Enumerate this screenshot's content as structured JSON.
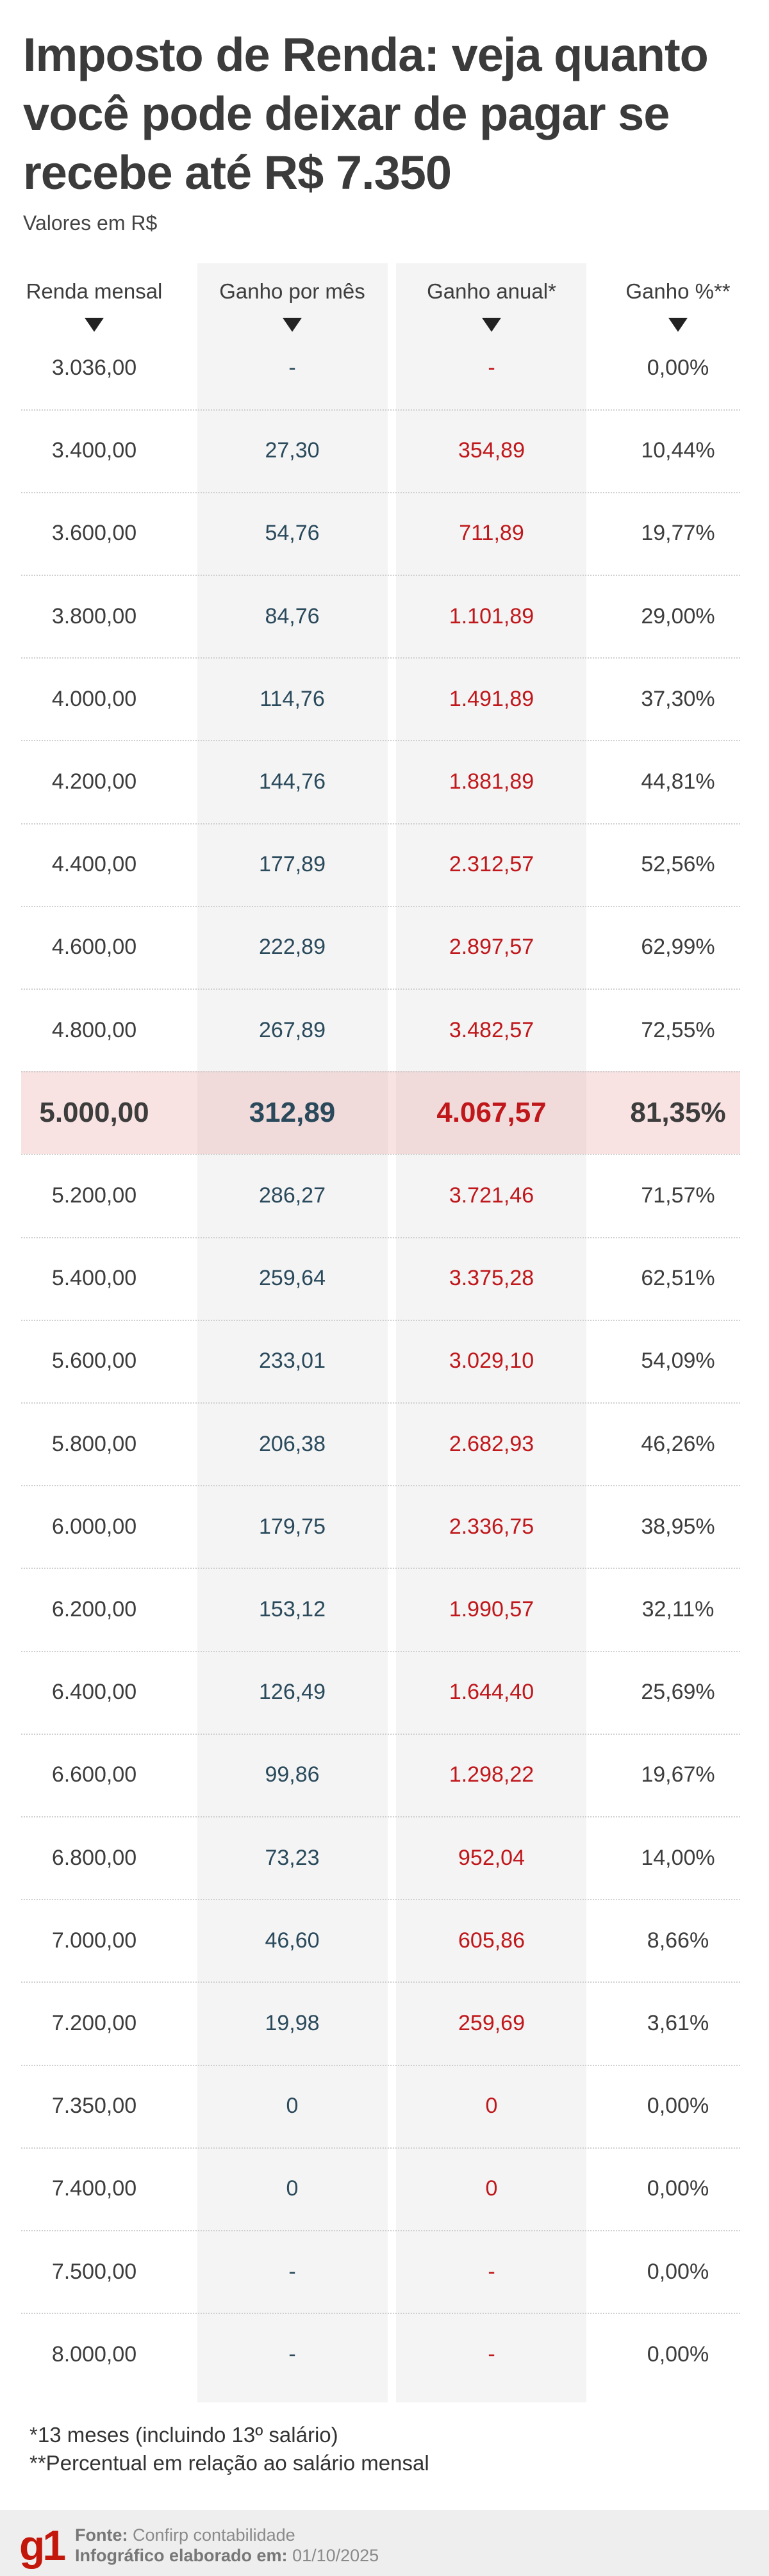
{
  "title": "Imposto de Renda: veja quanto você pode deixar de pagar se recebe até R$ 7.350",
  "subtitle": "Valores em R$",
  "chart_data": {
    "type": "table",
    "columns": [
      "Renda mensal",
      "Ganho por mês",
      "Ganho anual*",
      "Ganho %**"
    ],
    "highlight_row": "5.000,00",
    "colors": {
      "ganho_mes": "#2a4a5c",
      "ganho_anual": "#c0171b",
      "text": "#3d3d3d",
      "highlight": "#f4dede"
    },
    "rows": [
      [
        "3.036,00",
        "-",
        "-",
        "0,00%"
      ],
      [
        "3.400,00",
        "27,30",
        "354,89",
        "10,44%"
      ],
      [
        "3.600,00",
        "54,76",
        "711,89",
        "19,77%"
      ],
      [
        "3.800,00",
        "84,76",
        "1.101,89",
        "29,00%"
      ],
      [
        "4.000,00",
        "114,76",
        "1.491,89",
        "37,30%"
      ],
      [
        "4.200,00",
        "144,76",
        "1.881,89",
        "44,81%"
      ],
      [
        "4.400,00",
        "177,89",
        "2.312,57",
        "52,56%"
      ],
      [
        "4.600,00",
        "222,89",
        "2.897,57",
        "62,99%"
      ],
      [
        "4.800,00",
        "267,89",
        "3.482,57",
        "72,55%"
      ],
      [
        "5.000,00",
        "312,89",
        "4.067,57",
        "81,35%"
      ],
      [
        "5.200,00",
        "286,27",
        "3.721,46",
        "71,57%"
      ],
      [
        "5.400,00",
        "259,64",
        "3.375,28",
        "62,51%"
      ],
      [
        "5.600,00",
        "233,01",
        "3.029,10",
        "54,09%"
      ],
      [
        "5.800,00",
        "206,38",
        "2.682,93",
        "46,26%"
      ],
      [
        "6.000,00",
        "179,75",
        "2.336,75",
        "38,95%"
      ],
      [
        "6.200,00",
        "153,12",
        "1.990,57",
        "32,11%"
      ],
      [
        "6.400,00",
        "126,49",
        "1.644,40",
        "25,69%"
      ],
      [
        "6.600,00",
        "99,86",
        "1.298,22",
        "19,67%"
      ],
      [
        "6.800,00",
        "73,23",
        "952,04",
        "14,00%"
      ],
      [
        "7.000,00",
        "46,60",
        "605,86",
        "8,66%"
      ],
      [
        "7.200,00",
        "19,98",
        "259,69",
        "3,61%"
      ],
      [
        "7.350,00",
        "0",
        "0",
        "0,00%"
      ],
      [
        "7.400,00",
        "0",
        "0",
        "0,00%"
      ],
      [
        "7.500,00",
        "-",
        "-",
        "0,00%"
      ],
      [
        "8.000,00",
        "-",
        "-",
        "0,00%"
      ]
    ]
  },
  "notes": [
    "*13 meses (incluindo 13º salário)",
    "**Percentual em relação ao salário mensal"
  ],
  "footer": {
    "logo": "g1",
    "source_label": "Fonte:",
    "source": "Confirp contabilidade",
    "date_label": "Infográfico elaborado em:",
    "date": "01/10/2025"
  }
}
